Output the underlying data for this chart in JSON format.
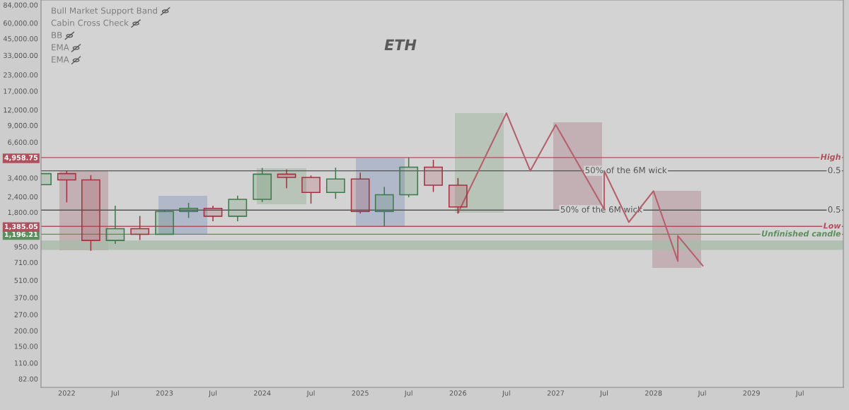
{
  "chart_data": {
    "type": "candlestick",
    "title": "ETH",
    "log": true,
    "annotations": [
      "Bull Market Support Band",
      "Cabin Cross Check",
      "BB",
      "EMA",
      "EMA",
      {
        "text": "50% of the 6M wick",
        "x": "2027-09-20",
        "y": 3876
      },
      {
        "text": "50% of the 6M wick",
        "x": "2027-06-20",
        "y": 1870
      },
      {
        "text": "0.5",
        "x": "2029-12-01",
        "y": 3876
      },
      {
        "text": "0.5",
        "x": "2029-12-01",
        "y": 1870
      }
    ],
    "series": [
      {
        "type": "candlestick",
        "x": [
          "2021-10-01",
          "2022-01-01",
          "2022-04-01",
          "2022-07-01",
          "2022-10-01",
          "2023-01-01",
          "2023-04-01",
          "2023-07-01",
          "2023-10-01",
          "2024-01-01",
          "2024-04-01",
          "2024-07-01",
          "2024-10-01",
          "2025-01-01",
          "2025-04-01",
          "2025-07-01",
          "2025-10-01",
          "2026-01-01"
        ],
        "ohlc": [
          [
            3000,
            3680,
            3000,
            3680
          ],
          [
            3680,
            3900,
            2160,
            3280
          ],
          [
            3280,
            3580,
            880,
            1067
          ],
          [
            1067,
            2030,
            1000,
            1328
          ],
          [
            1328,
            1680,
            1075,
            1196
          ],
          [
            1196,
            1860,
            1190,
            1822
          ],
          [
            1822,
            2140,
            1620,
            1934
          ],
          [
            1934,
            2030,
            1520,
            1671
          ],
          [
            1671,
            2445,
            1520,
            2282
          ],
          [
            2282,
            4090,
            2170,
            3645
          ],
          [
            3645,
            3975,
            2810,
            3432
          ],
          [
            3432,
            3560,
            2110,
            2600
          ],
          [
            2600,
            4110,
            2310,
            3333
          ],
          [
            3333,
            3745,
            1760,
            1822
          ],
          [
            1822,
            2880,
            1385,
            2487
          ],
          [
            2487,
            4958.75,
            2375,
            4145
          ],
          [
            4145,
            4755,
            2620,
            2967
          ],
          [
            2967,
            3390,
            1773,
            1985
          ]
        ],
        "colors": [
          "#3d7a4a",
          "#a3323f",
          "#a3323f",
          "#3d7a4a",
          "#a3323f",
          "#3d7a4a",
          "#3d7a4a",
          "#a3323f",
          "#3d7a4a",
          "#3d7a4a",
          "#a3323f",
          "#a3323f",
          "#3d7a4a",
          "#a3323f",
          "#3d7a4a",
          "#3d7a4a",
          "#a3323f",
          "#a3323f"
        ]
      },
      {
        "type": "line",
        "color": "#b5606b",
        "x": [
          "2026-01-01",
          "2026-07-01",
          "2026-09-28",
          "2027-01-01",
          "2027-07-01",
          "2027-07-01",
          "2027-10-01",
          "2028-01-01",
          "2028-04-01",
          "2028-04-01",
          "2028-07-03"
        ],
        "values": [
          1773,
          11300,
          3876,
          9100,
          1903,
          3876,
          1497,
          2666,
          727,
          1163,
          668
        ]
      }
    ],
    "ref_lines": [
      {
        "axis": "y",
        "value": 4958.75,
        "label": "High",
        "color": "#b0505c",
        "line_style": "solid"
      },
      {
        "axis": "y",
        "value": 3876,
        "color": "#555555",
        "line_style": "solid"
      },
      {
        "axis": "y",
        "value": 1870,
        "color": "#555555",
        "line_style": "solid"
      },
      {
        "axis": "y",
        "value": 1385.05,
        "label": "Low",
        "color": "#b0505c",
        "line_style": "solid"
      },
      {
        "axis": "y",
        "value": 1196.21,
        "label": "Unfinished candle",
        "color": "#5b8f5b",
        "line_style": "solid"
      }
    ],
    "bands": [
      {
        "axis": "y",
        "from": 896,
        "to": 1064,
        "label": null,
        "color": "#a9bca9"
      }
    ],
    "xlim": [
      "2021-09-27",
      "2029-12-10"
    ],
    "xticks": [
      {
        "value": "2022-01-01",
        "label": "2022"
      },
      {
        "value": "2022-07-01",
        "label": "Jul"
      },
      {
        "value": "2023-01-01",
        "label": "2023"
      },
      {
        "value": "2023-07-01",
        "label": "Jul"
      },
      {
        "value": "2024-01-01",
        "label": "2024"
      },
      {
        "value": "2024-07-01",
        "label": "Jul"
      },
      {
        "value": "2025-01-01",
        "label": "2025"
      },
      {
        "value": "2025-07-01",
        "label": "Jul"
      },
      {
        "value": "2026-01-01",
        "label": "2026"
      },
      {
        "value": "2026-07-01",
        "label": "Jul"
      },
      {
        "value": "2027-01-01",
        "label": "2027"
      },
      {
        "value": "2027-07-01",
        "label": "Jul"
      },
      {
        "value": "2028-01-01",
        "label": "2028"
      },
      {
        "value": "2028-07-01",
        "label": "Jul"
      },
      {
        "value": "2029-01-01",
        "label": "2029"
      },
      {
        "value": "2029-07-01",
        "label": "Jul"
      }
    ],
    "ylim": [
      70,
      92000
    ],
    "yticks": [
      {
        "value": 82,
        "label": "82.00"
      },
      {
        "value": 110,
        "label": "110.00"
      },
      {
        "value": 150,
        "label": "150.00"
      },
      {
        "value": 200,
        "label": "200.00"
      },
      {
        "value": 270,
        "label": "270.00"
      },
      {
        "value": 370,
        "label": "370.00"
      },
      {
        "value": 510,
        "label": "510.00"
      },
      {
        "value": 710,
        "label": "710.00"
      },
      {
        "value": 950,
        "label": "950.00"
      },
      {
        "value": 1196.21,
        "label": "1,196.21"
      },
      {
        "value": 1385.05,
        "label": "1,385.05"
      },
      {
        "value": 1800,
        "label": "1,800.00"
      },
      {
        "value": 2400,
        "label": "2,400.00"
      },
      {
        "value": 3400,
        "label": "3,400.00"
      },
      {
        "value": 4958.75,
        "label": "4,958.75"
      },
      {
        "value": 6600,
        "label": "6,600.00"
      },
      {
        "value": 9000,
        "label": "9,000.00"
      },
      {
        "value": 12000,
        "label": "12,000.00"
      },
      {
        "value": 17000,
        "label": "17,000.00"
      },
      {
        "value": 23000,
        "label": "23,000.00"
      },
      {
        "value": 33000,
        "label": "33,000.00"
      },
      {
        "value": 45000,
        "label": "45,000.00"
      },
      {
        "value": 60000,
        "label": "60,000.00"
      },
      {
        "value": 84000,
        "label": "84,000.00"
      }
    ],
    "grid": false
  }
}
